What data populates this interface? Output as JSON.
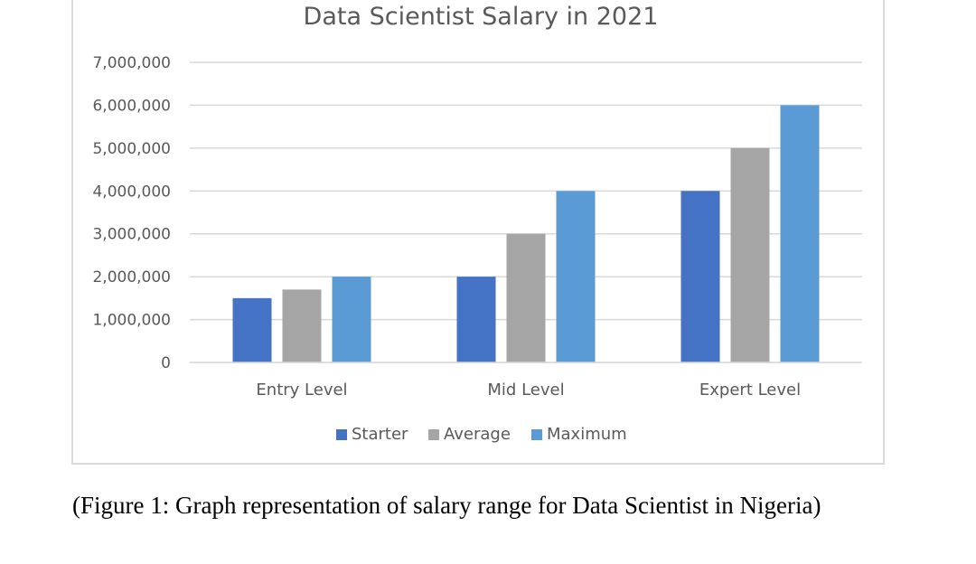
{
  "chart_data": {
    "type": "bar",
    "title": "Data Scientist Salary in 2021",
    "xlabel": "",
    "ylabel": "",
    "categories": [
      "Entry Level",
      "Mid Level",
      "Expert Level"
    ],
    "series": [
      {
        "name": "Starter",
        "values": [
          1500000,
          2000000,
          4000000
        ],
        "color": "#4472c4"
      },
      {
        "name": "Average",
        "values": [
          1700000,
          3000000,
          5000000
        ],
        "color": "#a5a5a5"
      },
      {
        "name": "Maximum",
        "values": [
          2000000,
          4000000,
          6000000
        ],
        "color": "#5b9bd5"
      }
    ],
    "ylim": [
      0,
      7000000
    ],
    "yticks": [
      0,
      1000000,
      2000000,
      3000000,
      4000000,
      5000000,
      6000000,
      7000000
    ],
    "ytick_labels": [
      "0",
      "1,000,000",
      "2,000,000",
      "3,000,000",
      "4,000,000",
      "5,000,000",
      "6,000,000",
      "7,000,000"
    ],
    "grid": true,
    "legend_position": "bottom"
  },
  "caption": "(Figure 1: Graph representation of salary range for Data Scientist in Nigeria)"
}
